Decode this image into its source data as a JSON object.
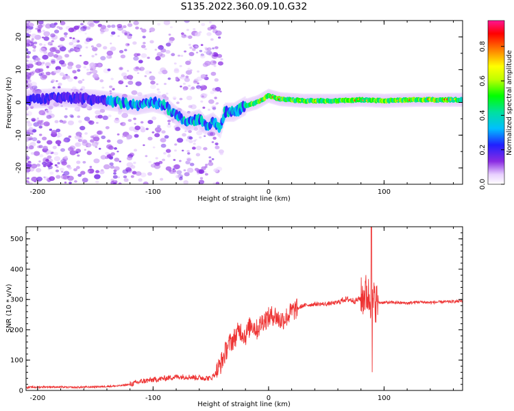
{
  "title": "S135.2022.360.09.10.G32",
  "chart_data": [
    {
      "type": "heatmap",
      "xlabel": "Height of straight line (km)",
      "ylabel": "Frequency (Hz)",
      "xlim": [
        -210,
        168
      ],
      "ylim": [
        -25,
        25
      ],
      "xticks": [
        -200,
        -100,
        0,
        100
      ],
      "yticks": [
        -20,
        -10,
        0,
        10,
        20
      ],
      "colorbar": {
        "label": "Normalized spectral amplitude",
        "range": [
          0,
          0.95
        ],
        "ticks": [
          0.0,
          0.2,
          0.4,
          0.6,
          0.8
        ]
      },
      "ridge": [
        {
          "x": -205,
          "y": 1
        },
        {
          "x": -180,
          "y": 1.5
        },
        {
          "x": -150,
          "y": 1
        },
        {
          "x": -130,
          "y": 0
        },
        {
          "x": -115,
          "y": -1
        },
        {
          "x": -100,
          "y": 0
        },
        {
          "x": -90,
          "y": -1
        },
        {
          "x": -80,
          "y": -4
        },
        {
          "x": -70,
          "y": -6
        },
        {
          "x": -60,
          "y": -5
        },
        {
          "x": -55,
          "y": -7
        },
        {
          "x": -48,
          "y": -6
        },
        {
          "x": -42,
          "y": -8
        },
        {
          "x": -38,
          "y": -3
        },
        {
          "x": -30,
          "y": -3
        },
        {
          "x": -20,
          "y": -1
        },
        {
          "x": -10,
          "y": 0
        },
        {
          "x": 0,
          "y": 2
        },
        {
          "x": 10,
          "y": 1
        },
        {
          "x": 30,
          "y": 0.5
        },
        {
          "x": 60,
          "y": 0.5
        },
        {
          "x": 80,
          "y": 0.8
        },
        {
          "x": 100,
          "y": 0.5
        },
        {
          "x": 130,
          "y": 0.8
        },
        {
          "x": 168,
          "y": 0.8
        }
      ]
    },
    {
      "type": "line",
      "xlabel": "Height of straight line (km)",
      "ylabel": "SNR (10 * v/v)",
      "xlim": [
        -210,
        168
      ],
      "ylim": [
        0,
        540
      ],
      "xticks": [
        -200,
        -100,
        0,
        100
      ],
      "yticks": [
        0,
        100,
        200,
        300,
        400,
        500
      ],
      "line_color": "#ee3333",
      "series": [
        {
          "x": [
            -210,
            -190,
            -170,
            -150,
            -130,
            -120,
            -110,
            -100,
            -90,
            -80,
            -70,
            -60,
            -50,
            -45,
            -40,
            -35,
            -30,
            -25,
            -20,
            -15,
            -10,
            -5,
            0,
            5,
            10,
            15,
            20,
            25,
            30,
            40,
            50,
            60,
            65,
            70,
            75,
            80,
            85,
            88,
            90,
            92,
            95,
            100,
            110,
            120,
            130,
            140,
            150,
            160,
            168
          ],
          "y": [
            10,
            12,
            10,
            12,
            15,
            20,
            30,
            35,
            40,
            45,
            45,
            42,
            40,
            60,
            100,
            150,
            170,
            200,
            180,
            220,
            200,
            230,
            240,
            250,
            230,
            240,
            260,
            270,
            280,
            285,
            285,
            290,
            300,
            300,
            295,
            305,
            320,
            300,
            290,
            295,
            290,
            290,
            290,
            288,
            292,
            290,
            292,
            293,
            295
          ]
        }
      ]
    }
  ]
}
